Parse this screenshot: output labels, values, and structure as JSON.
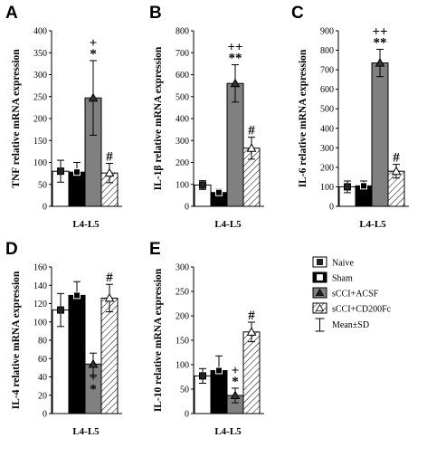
{
  "legend": {
    "items": [
      {
        "label": "Naive",
        "fill": "white",
        "marker": "square"
      },
      {
        "label": "Sham",
        "fill": "black",
        "marker": "square"
      },
      {
        "label": "sCCI+ACSF",
        "fill": "gray",
        "marker": "triangle"
      },
      {
        "label": "sCCI+CD200Fc",
        "fill": "hatch",
        "marker": "triangle"
      }
    ],
    "error_label": "Mean±SD"
  },
  "colors": {
    "gray": "#808080",
    "black": "#000000",
    "white": "#ffffff"
  },
  "chart_data": [
    {
      "panel": "A",
      "type": "bar",
      "position": "top-left",
      "ylabel": "TNF relative mRNA expression",
      "xlabel": "L4-L5",
      "ylim": [
        0,
        400
      ],
      "yticks": [
        0,
        50,
        100,
        150,
        200,
        250,
        300,
        350,
        400
      ],
      "categories": [
        "Naive",
        "Sham",
        "sCCI+ACSF",
        "sCCI+CD200Fc"
      ],
      "values": [
        80,
        78,
        247,
        76
      ],
      "errors": [
        25,
        22,
        85,
        22
      ],
      "annotations": [
        [
          "",
          ""
        ],
        [
          "",
          ""
        ],
        [
          "+",
          "*"
        ],
        [
          "",
          "#"
        ]
      ]
    },
    {
      "panel": "B",
      "type": "bar",
      "position": "top-middle",
      "ylabel": "IL-1β relative mRNA expression",
      "xlabel": "L4-L5",
      "ylim": [
        0,
        800
      ],
      "yticks": [
        0,
        100,
        200,
        300,
        400,
        500,
        600,
        700,
        800
      ],
      "categories": [
        "Naive",
        "Sham",
        "sCCI+ACSF",
        "sCCI+CD200Fc"
      ],
      "values": [
        97,
        63,
        560,
        265
      ],
      "errors": [
        20,
        15,
        85,
        50
      ],
      "annotations": [
        [
          "",
          ""
        ],
        [
          "",
          ""
        ],
        [
          "++",
          "**"
        ],
        [
          "",
          "#"
        ]
      ]
    },
    {
      "panel": "C",
      "type": "bar",
      "position": "top-right",
      "ylabel": "IL-6 relative mRNA expression",
      "xlabel": "L4-L5",
      "ylim": [
        0,
        900
      ],
      "yticks": [
        0,
        100,
        200,
        300,
        400,
        500,
        600,
        700,
        800,
        900
      ],
      "categories": [
        "Naive",
        "Sham",
        "sCCI+ACSF",
        "sCCI+CD200Fc"
      ],
      "values": [
        100,
        105,
        735,
        180
      ],
      "errors": [
        30,
        25,
        70,
        35
      ],
      "annotations": [
        [
          "",
          ""
        ],
        [
          "",
          ""
        ],
        [
          "++",
          "**"
        ],
        [
          "",
          "#"
        ]
      ]
    },
    {
      "panel": "D",
      "type": "bar",
      "position": "bottom-left",
      "ylabel": "IL-4 relative mRNA expression",
      "xlabel": "L4-L5",
      "ylim": [
        0,
        160
      ],
      "yticks": [
        0,
        20,
        40,
        60,
        80,
        100,
        120,
        140,
        160
      ],
      "categories": [
        "Naive",
        "Sham",
        "sCCI+ACSF",
        "sCCI+CD200Fc"
      ],
      "values": [
        113,
        129,
        54,
        126
      ],
      "errors": [
        18,
        15,
        12,
        15
      ],
      "annotations": [
        [
          "",
          ""
        ],
        [
          "",
          ""
        ],
        [
          "+",
          "*"
        ],
        [
          "",
          "#"
        ]
      ],
      "annot_below": [
        false,
        false,
        true,
        false
      ]
    },
    {
      "panel": "E",
      "type": "bar",
      "position": "bottom-middle",
      "ylabel": "IL-10 relative mRNA expression",
      "xlabel": "L4-L5",
      "ylim": [
        0,
        300
      ],
      "yticks": [
        0,
        50,
        100,
        150,
        200,
        250,
        300
      ],
      "categories": [
        "Naive",
        "Sham",
        "sCCI+ACSF",
        "sCCI+CD200Fc"
      ],
      "values": [
        77,
        88,
        37,
        167
      ],
      "errors": [
        15,
        30,
        15,
        20
      ],
      "annotations": [
        [
          "",
          ""
        ],
        [
          "",
          ""
        ],
        [
          "+",
          "*"
        ],
        [
          "",
          "#"
        ]
      ]
    }
  ]
}
